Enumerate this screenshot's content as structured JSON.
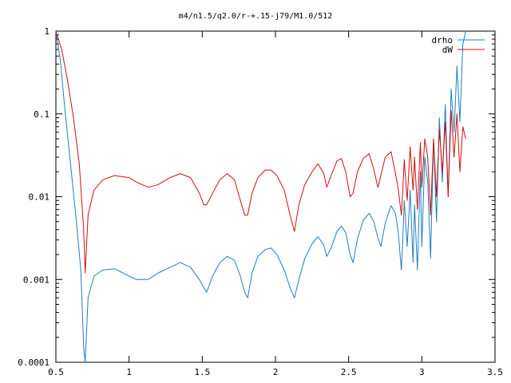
{
  "chart_data": {
    "type": "line",
    "title": "m4/n1.5/q2.0/r-+.15-j79/M1.0/512",
    "xlabel": "",
    "ylabel": "",
    "xlim": [
      0.5,
      3.5
    ],
    "ylim": [
      0.0001,
      1
    ],
    "yscale": "log",
    "grid": false,
    "legend_position": "top-right",
    "x_ticks": [
      "0.5",
      "1",
      "1.5",
      "2",
      "2.5",
      "3",
      "3.5"
    ],
    "y_ticks": [
      "0.0001",
      "0.001",
      "0.01",
      "0.1",
      "1"
    ],
    "series": [
      {
        "name": "drho",
        "color": "#1f7fc0",
        "x": [
          0.5,
          0.53,
          0.56,
          0.6,
          0.64,
          0.67,
          0.69,
          0.7,
          0.72,
          0.76,
          0.82,
          0.9,
          1.0,
          1.05,
          1.13,
          1.2,
          1.28,
          1.35,
          1.42,
          1.48,
          1.51,
          1.53,
          1.57,
          1.62,
          1.67,
          1.72,
          1.76,
          1.79,
          1.81,
          1.84,
          1.88,
          1.93,
          1.97,
          2.01,
          2.06,
          2.1,
          2.13,
          2.16,
          2.2,
          2.25,
          2.29,
          2.33,
          2.35,
          2.38,
          2.42,
          2.45,
          2.48,
          2.51,
          2.53,
          2.56,
          2.6,
          2.64,
          2.67,
          2.7,
          2.72,
          2.75,
          2.79,
          2.82,
          2.84,
          2.86,
          2.87,
          2.88,
          2.9,
          2.92,
          2.94,
          2.95,
          2.97,
          2.99,
          3.0,
          3.02,
          3.04,
          3.06,
          3.08,
          3.1,
          3.12,
          3.14,
          3.16,
          3.18,
          3.2,
          3.22,
          3.24,
          3.26,
          3.28,
          3.3
        ],
        "values": [
          1.0,
          0.45,
          0.12,
          0.025,
          0.005,
          0.0013,
          0.00015,
          0.0001,
          0.0006,
          0.0011,
          0.0013,
          0.00135,
          0.0011,
          0.001,
          0.001,
          0.0012,
          0.0014,
          0.0016,
          0.0014,
          0.001,
          0.0008,
          0.0007,
          0.0011,
          0.0016,
          0.0019,
          0.0017,
          0.0011,
          0.0007,
          0.0006,
          0.0012,
          0.0019,
          0.0023,
          0.0024,
          0.002,
          0.0013,
          0.0008,
          0.0006,
          0.001,
          0.0018,
          0.0027,
          0.0033,
          0.0026,
          0.0019,
          0.0024,
          0.0038,
          0.0044,
          0.0037,
          0.002,
          0.0016,
          0.0031,
          0.0052,
          0.0063,
          0.0051,
          0.0032,
          0.0025,
          0.0048,
          0.0078,
          0.0063,
          0.0035,
          0.0013,
          0.003,
          0.009,
          0.0025,
          0.012,
          0.0016,
          0.008,
          0.0013,
          0.02,
          0.0025,
          0.03,
          0.015,
          0.0018,
          0.05,
          0.005,
          0.09,
          0.015,
          0.13,
          0.01,
          0.2,
          0.06,
          0.38,
          0.08,
          0.7,
          1.0
        ]
      },
      {
        "name": "dW",
        "color": "#d01010",
        "x": [
          0.5,
          0.54,
          0.58,
          0.62,
          0.66,
          0.69,
          0.7,
          0.72,
          0.76,
          0.82,
          0.9,
          1.0,
          1.05,
          1.13,
          1.2,
          1.28,
          1.35,
          1.42,
          1.48,
          1.51,
          1.53,
          1.57,
          1.62,
          1.67,
          1.72,
          1.76,
          1.79,
          1.81,
          1.84,
          1.88,
          1.93,
          1.97,
          2.01,
          2.06,
          2.1,
          2.13,
          2.16,
          2.2,
          2.25,
          2.29,
          2.33,
          2.35,
          2.38,
          2.42,
          2.45,
          2.48,
          2.51,
          2.53,
          2.56,
          2.6,
          2.64,
          2.67,
          2.7,
          2.72,
          2.75,
          2.79,
          2.82,
          2.84,
          2.86,
          2.87,
          2.88,
          2.9,
          2.92,
          2.94,
          2.95,
          2.97,
          2.99,
          3.0,
          3.02,
          3.04,
          3.06,
          3.08,
          3.1,
          3.12,
          3.14,
          3.16,
          3.18,
          3.2,
          3.22,
          3.24,
          3.26,
          3.28,
          3.3
        ],
        "values": [
          1.0,
          0.6,
          0.25,
          0.09,
          0.025,
          0.004,
          0.0012,
          0.006,
          0.012,
          0.016,
          0.018,
          0.017,
          0.015,
          0.013,
          0.014,
          0.017,
          0.019,
          0.017,
          0.011,
          0.008,
          0.008,
          0.011,
          0.016,
          0.019,
          0.016,
          0.009,
          0.006,
          0.006,
          0.011,
          0.017,
          0.021,
          0.021,
          0.018,
          0.012,
          0.006,
          0.0038,
          0.008,
          0.014,
          0.02,
          0.025,
          0.019,
          0.013,
          0.018,
          0.027,
          0.029,
          0.02,
          0.01,
          0.011,
          0.02,
          0.029,
          0.033,
          0.022,
          0.013,
          0.018,
          0.03,
          0.035,
          0.019,
          0.012,
          0.006,
          0.012,
          0.028,
          0.009,
          0.04,
          0.012,
          0.03,
          0.007,
          0.045,
          0.013,
          0.05,
          0.03,
          0.006,
          0.05,
          0.01,
          0.065,
          0.02,
          0.08,
          0.01,
          0.11,
          0.03,
          0.1,
          0.02,
          0.07,
          0.05
        ]
      }
    ]
  }
}
